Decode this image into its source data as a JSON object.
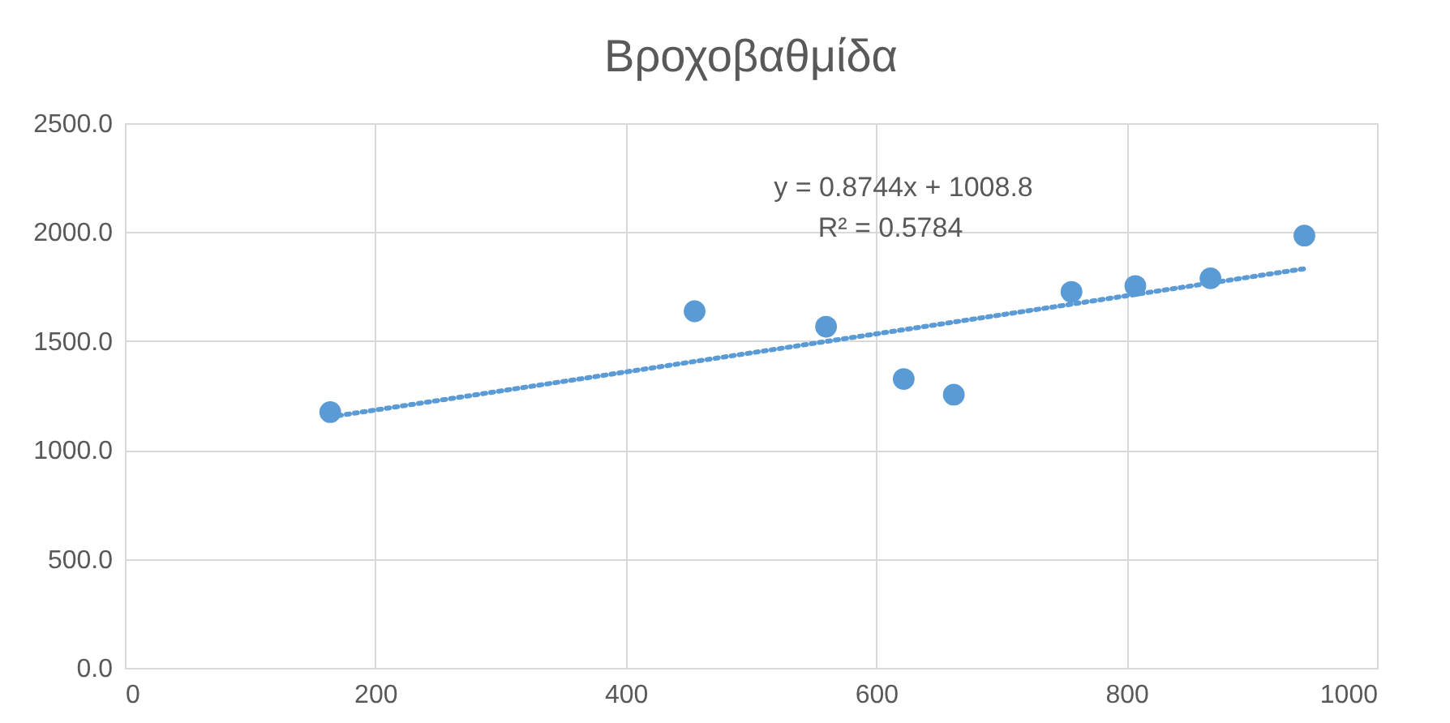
{
  "chart_data": {
    "type": "scatter",
    "title": "Βροχοβαθμίδα",
    "series": [
      {
        "color": "#5b9bd5",
        "marker": "circle",
        "x": [
          164,
          455,
          560,
          622,
          662,
          756,
          807,
          867,
          942
        ],
        "values": [
          1174,
          1637,
          1566,
          1326,
          1254,
          1726,
          1753,
          1788,
          1984
        ]
      },
      {
        "type": "line",
        "color": "#5b9bd5",
        "line_style": "dotted",
        "marker": "none",
        "x": [
          164,
          942
        ],
        "values": [
          1152,
          1832
        ]
      }
    ],
    "xlim": [
      0,
      1000
    ],
    "xticks": [
      0,
      200,
      400,
      600,
      800,
      1000
    ],
    "ylim": [
      0,
      2500
    ],
    "yticks": [
      {
        "value": 0,
        "label": "0.0"
      },
      {
        "value": 500,
        "label": "500.0"
      },
      {
        "value": 1000,
        "label": "1000.0"
      },
      {
        "value": 1500,
        "label": "1500.0"
      },
      {
        "value": 2000,
        "label": "2000.0"
      },
      {
        "value": 2500,
        "label": "2500.0"
      }
    ],
    "grid": true,
    "annotations": [
      "y = 0.8744x + 1008.8",
      "R² = 0.5784"
    ]
  }
}
